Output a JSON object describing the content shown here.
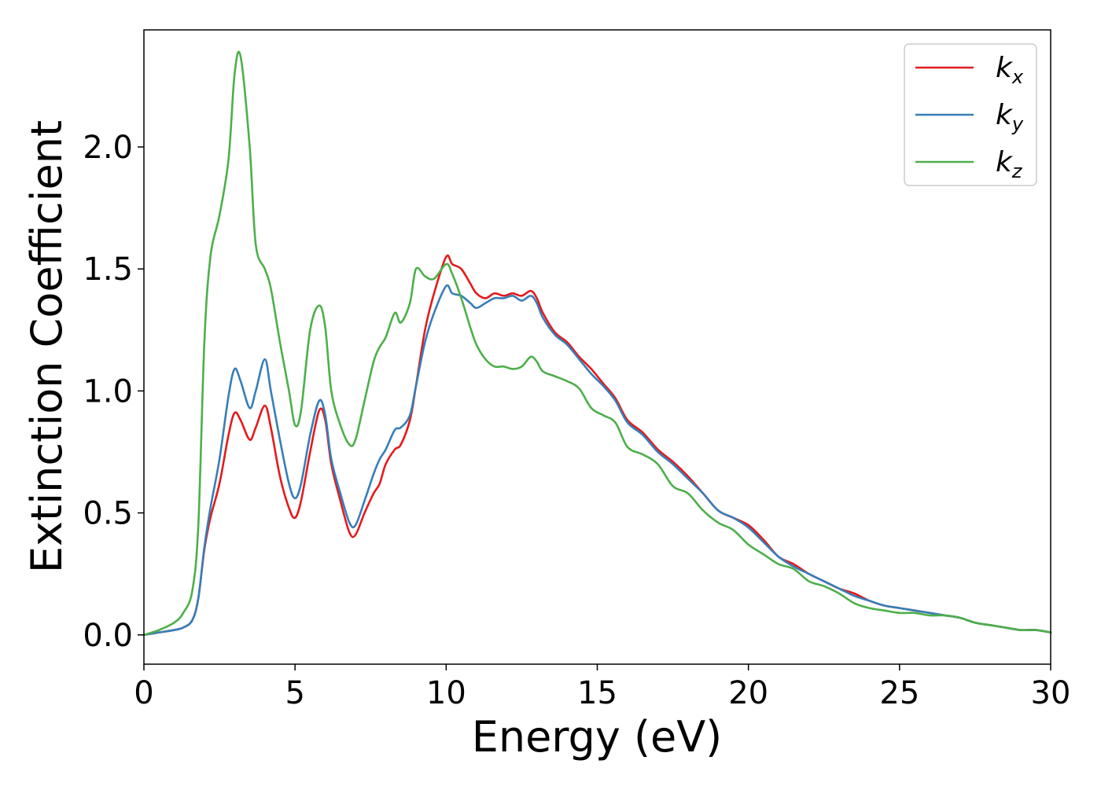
{
  "chart_data": {
    "type": "line",
    "title": "",
    "xlabel": "Energy (eV)",
    "ylabel": "Extinction Coefficient",
    "xlim": [
      0,
      30
    ],
    "ylim": [
      -0.12,
      2.48
    ],
    "xticks": [
      0,
      5,
      10,
      15,
      20,
      25,
      30
    ],
    "xtick_labels": [
      "0",
      "5",
      "10",
      "15",
      "20",
      "25",
      "30"
    ],
    "yticks": [
      0.0,
      0.5,
      1.0,
      1.5,
      2.0
    ],
    "ytick_labels": [
      "0.0",
      "0.5",
      "1.0",
      "1.5",
      "2.0"
    ],
    "grid": false,
    "legend_position": "top-right",
    "series": [
      {
        "name": "k_x",
        "legend_base": "k",
        "legend_sub": "x",
        "color": "#e41a1c",
        "x": [
          0,
          0.5,
          1.0,
          1.3,
          1.6,
          1.8,
          2.0,
          2.2,
          2.5,
          2.8,
          3.0,
          3.2,
          3.5,
          3.7,
          4.0,
          4.2,
          4.5,
          4.8,
          5.0,
          5.2,
          5.5,
          5.8,
          6.0,
          6.2,
          6.5,
          6.8,
          7.0,
          7.3,
          7.6,
          7.8,
          8.0,
          8.3,
          8.5,
          8.8,
          9.0,
          9.3,
          9.6,
          10.0,
          10.2,
          10.5,
          10.8,
          11.0,
          11.3,
          11.6,
          11.9,
          12.2,
          12.5,
          12.8,
          13.0,
          13.2,
          13.6,
          14.0,
          14.4,
          14.8,
          15.2,
          15.6,
          16.0,
          16.5,
          17.0,
          17.5,
          18.0,
          18.5,
          19.0,
          19.5,
          20.0,
          20.5,
          21.0,
          21.5,
          22.0,
          22.5,
          23.0,
          23.5,
          24.0,
          24.5,
          25.0,
          25.5,
          26.0,
          26.5,
          27.0,
          27.5,
          28.0,
          28.5,
          29.0,
          29.5,
          30.0
        ],
        "y": [
          0.0,
          0.01,
          0.02,
          0.03,
          0.06,
          0.15,
          0.35,
          0.48,
          0.62,
          0.82,
          0.91,
          0.88,
          0.8,
          0.85,
          0.94,
          0.85,
          0.65,
          0.52,
          0.48,
          0.55,
          0.75,
          0.92,
          0.88,
          0.7,
          0.55,
          0.42,
          0.41,
          0.5,
          0.58,
          0.62,
          0.7,
          0.76,
          0.78,
          0.88,
          1.02,
          1.25,
          1.4,
          1.55,
          1.52,
          1.5,
          1.44,
          1.4,
          1.38,
          1.4,
          1.39,
          1.4,
          1.39,
          1.41,
          1.38,
          1.32,
          1.24,
          1.2,
          1.14,
          1.09,
          1.03,
          0.97,
          0.88,
          0.83,
          0.76,
          0.71,
          0.65,
          0.58,
          0.51,
          0.48,
          0.45,
          0.39,
          0.32,
          0.29,
          0.25,
          0.22,
          0.19,
          0.17,
          0.14,
          0.12,
          0.11,
          0.1,
          0.09,
          0.08,
          0.07,
          0.05,
          0.04,
          0.03,
          0.02,
          0.02,
          0.01
        ]
      },
      {
        "name": "k_y",
        "legend_base": "k",
        "legend_sub": "y",
        "color": "#377eb8",
        "x": [
          0,
          0.5,
          1.0,
          1.3,
          1.6,
          1.8,
          2.0,
          2.2,
          2.5,
          2.8,
          3.0,
          3.2,
          3.5,
          3.7,
          4.0,
          4.2,
          4.5,
          4.8,
          5.0,
          5.2,
          5.5,
          5.8,
          6.0,
          6.2,
          6.5,
          6.8,
          7.0,
          7.3,
          7.6,
          7.8,
          8.0,
          8.3,
          8.5,
          8.8,
          9.0,
          9.3,
          9.6,
          10.0,
          10.2,
          10.5,
          10.8,
          11.0,
          11.3,
          11.6,
          11.9,
          12.2,
          12.5,
          12.8,
          13.0,
          13.2,
          13.6,
          14.0,
          14.4,
          14.8,
          15.2,
          15.6,
          16.0,
          16.5,
          17.0,
          17.5,
          18.0,
          18.5,
          19.0,
          19.5,
          20.0,
          20.5,
          21.0,
          21.5,
          22.0,
          22.5,
          23.0,
          23.5,
          24.0,
          24.5,
          25.0,
          25.5,
          26.0,
          26.5,
          27.0,
          27.5,
          28.0,
          28.5,
          29.0,
          29.5,
          30.0
        ],
        "y": [
          0.0,
          0.01,
          0.02,
          0.03,
          0.06,
          0.15,
          0.36,
          0.52,
          0.72,
          0.98,
          1.09,
          1.04,
          0.93,
          1.0,
          1.13,
          1.0,
          0.8,
          0.62,
          0.56,
          0.62,
          0.82,
          0.96,
          0.9,
          0.72,
          0.58,
          0.46,
          0.45,
          0.55,
          0.66,
          0.72,
          0.76,
          0.84,
          0.85,
          0.9,
          1.02,
          1.2,
          1.32,
          1.43,
          1.4,
          1.39,
          1.36,
          1.34,
          1.36,
          1.38,
          1.38,
          1.39,
          1.37,
          1.39,
          1.36,
          1.3,
          1.23,
          1.19,
          1.13,
          1.07,
          1.02,
          0.96,
          0.87,
          0.82,
          0.75,
          0.7,
          0.64,
          0.58,
          0.51,
          0.48,
          0.44,
          0.38,
          0.32,
          0.28,
          0.25,
          0.22,
          0.19,
          0.16,
          0.14,
          0.12,
          0.11,
          0.1,
          0.09,
          0.08,
          0.07,
          0.05,
          0.04,
          0.03,
          0.02,
          0.02,
          0.01
        ]
      },
      {
        "name": "k_z",
        "legend_base": "k",
        "legend_sub": "z",
        "color": "#4daf4a",
        "x": [
          0,
          0.5,
          1.0,
          1.3,
          1.6,
          1.8,
          2.0,
          2.2,
          2.5,
          2.8,
          3.0,
          3.2,
          3.5,
          3.7,
          4.0,
          4.2,
          4.5,
          4.8,
          5.0,
          5.2,
          5.5,
          5.8,
          6.0,
          6.2,
          6.5,
          6.8,
          7.0,
          7.3,
          7.6,
          7.8,
          8.0,
          8.3,
          8.5,
          8.8,
          9.0,
          9.3,
          9.6,
          10.0,
          10.2,
          10.5,
          10.8,
          11.0,
          11.3,
          11.6,
          11.9,
          12.2,
          12.5,
          12.8,
          13.0,
          13.2,
          13.6,
          14.0,
          14.4,
          14.8,
          15.2,
          15.6,
          16.0,
          16.5,
          17.0,
          17.5,
          18.0,
          18.5,
          19.0,
          19.5,
          20.0,
          20.5,
          21.0,
          21.5,
          22.0,
          22.5,
          23.0,
          23.5,
          24.0,
          24.5,
          25.0,
          25.5,
          26.0,
          26.5,
          27.0,
          27.5,
          28.0,
          28.5,
          29.0,
          29.5,
          30.0
        ],
        "y": [
          0.0,
          0.02,
          0.05,
          0.09,
          0.18,
          0.45,
          1.2,
          1.55,
          1.72,
          1.95,
          2.3,
          2.37,
          2.0,
          1.6,
          1.5,
          1.42,
          1.2,
          1.0,
          0.86,
          0.92,
          1.25,
          1.35,
          1.26,
          1.0,
          0.86,
          0.78,
          0.8,
          0.96,
          1.12,
          1.18,
          1.22,
          1.32,
          1.28,
          1.36,
          1.5,
          1.47,
          1.46,
          1.52,
          1.48,
          1.38,
          1.26,
          1.19,
          1.13,
          1.1,
          1.1,
          1.09,
          1.1,
          1.14,
          1.12,
          1.08,
          1.06,
          1.04,
          1.01,
          0.93,
          0.9,
          0.87,
          0.77,
          0.74,
          0.7,
          0.61,
          0.58,
          0.51,
          0.46,
          0.43,
          0.37,
          0.33,
          0.29,
          0.27,
          0.22,
          0.2,
          0.17,
          0.13,
          0.11,
          0.1,
          0.09,
          0.09,
          0.08,
          0.08,
          0.07,
          0.05,
          0.04,
          0.03,
          0.02,
          0.02,
          0.01
        ]
      }
    ]
  }
}
